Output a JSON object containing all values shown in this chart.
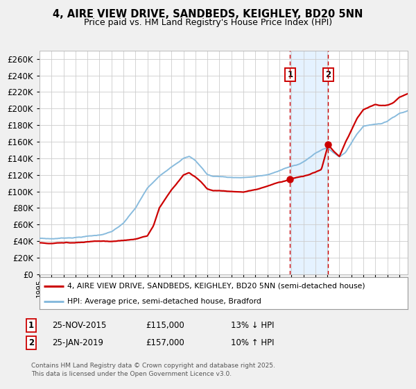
{
  "title_line1": "4, AIRE VIEW DRIVE, SANDBEDS, KEIGHLEY, BD20 5NN",
  "title_line2": "Price paid vs. HM Land Registry's House Price Index (HPI)",
  "legend_line1": "4, AIRE VIEW DRIVE, SANDBEDS, KEIGHLEY, BD20 5NN (semi-detached house)",
  "legend_line2": "HPI: Average price, semi-detached house, Bradford",
  "footer": "Contains HM Land Registry data © Crown copyright and database right 2025.\nThis data is licensed under the Open Government Licence v3.0.",
  "annotation1_label": "1",
  "annotation1_date": "25-NOV-2015",
  "annotation1_price": "£115,000",
  "annotation1_hpi": "13% ↓ HPI",
  "annotation2_label": "2",
  "annotation2_date": "25-JAN-2019",
  "annotation2_price": "£157,000",
  "annotation2_hpi": "10% ↑ HPI",
  "ylim": [
    0,
    270000
  ],
  "yticks": [
    0,
    20000,
    40000,
    60000,
    80000,
    100000,
    120000,
    140000,
    160000,
    180000,
    200000,
    220000,
    240000,
    260000
  ],
  "xlim_start": 1995,
  "xlim_end": 2025.7,
  "hpi_color": "#88bbdd",
  "price_color": "#cc0000",
  "background_color": "#f0f0f0",
  "plot_bg_color": "#ffffff",
  "grid_color": "#cccccc",
  "sale1_x": 2015.9,
  "sale1_y": 115000,
  "sale2_x": 2019.07,
  "sale2_y": 157000,
  "vline1_x": 2015.9,
  "vline2_x": 2019.07,
  "shade_x1": 2015.9,
  "shade_x2": 2019.07,
  "shade_color": "#ddeeff"
}
